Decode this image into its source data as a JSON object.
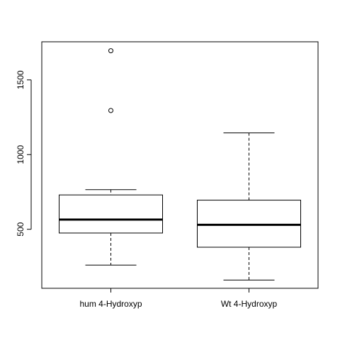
{
  "chart_data": {
    "type": "boxplot",
    "title": "",
    "xlabel": "",
    "ylabel": "",
    "ylim": [
      105,
      1755
    ],
    "yticks": [
      500,
      1000,
      1500
    ],
    "categories": [
      "hum 4-Hydroxyp",
      "Wt 4-Hydroxyp"
    ],
    "boxes": [
      {
        "name": "hum 4-Hydroxyp",
        "whisker_low": 260,
        "q1": 475,
        "median": 565,
        "q3": 730,
        "whisker_high": 765,
        "outliers": [
          1695,
          1295
        ]
      },
      {
        "name": "Wt 4-Hydroxyp",
        "whisker_low": 160,
        "q1": 380,
        "median": 530,
        "q3": 695,
        "whisker_high": 1145,
        "outliers": []
      }
    ],
    "grid": false,
    "legend": "none"
  }
}
